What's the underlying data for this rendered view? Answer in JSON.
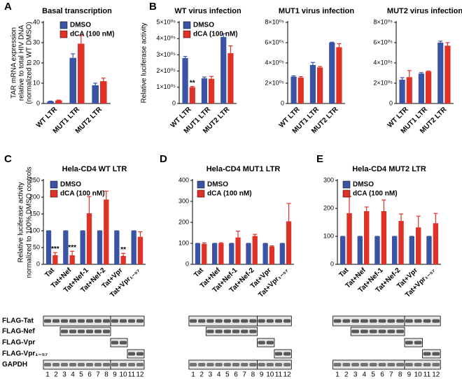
{
  "chart_data": [
    {
      "type": "bar",
      "panel": "A",
      "title": "Basal transcription",
      "ylabel": [
        "TAR mRNA expression",
        "relative to total HIV DNA",
        "(normalized to WT DMSO)"
      ],
      "categories": [
        "WT LTR",
        "MUT1 LTR",
        "MUT2 LTR"
      ],
      "series": [
        {
          "name": "DMSO",
          "color": "#3a53a4",
          "values": [
            1,
            22.5,
            9
          ],
          "errors": [
            0.2,
            2,
            1
          ]
        },
        {
          "name": "dCA (100 nM)",
          "color": "#e03127",
          "values": [
            1.5,
            29.5,
            11
          ],
          "errors": [
            0.2,
            4,
            1.5
          ]
        }
      ],
      "ylim": [
        0,
        40
      ],
      "yticks": [
        0,
        10,
        20,
        30,
        40
      ],
      "legend": true
    },
    {
      "type": "bar",
      "panel": "B",
      "title": "WT virus infection",
      "ylabel": [
        "Relative luciferase activity"
      ],
      "categories": [
        "WT LTR",
        "MUT1 LTR",
        "MUT2 LTR"
      ],
      "series": [
        {
          "name": "DMSO",
          "color": "#3a53a4",
          "values": [
            280000,
            155000,
            410000
          ],
          "errors": [
            10000,
            8000,
            20000
          ]
        },
        {
          "name": "dCA (100 nM)",
          "color": "#e03127",
          "values": [
            100000,
            152000,
            310000
          ],
          "errors": [
            5000,
            15000,
            45000
          ]
        }
      ],
      "annotations": [
        {
          "text": "**",
          "category": "WT LTR"
        }
      ],
      "ylim": [
        0,
        500000
      ],
      "yticks": [
        0,
        {
          "value": 100000,
          "label": "1×10⁰⁵"
        },
        {
          "value": 200000,
          "label": "2×10⁰⁵"
        },
        {
          "value": 300000,
          "label": "3×10⁰⁵"
        },
        {
          "value": 400000,
          "label": "4×10⁰⁵"
        },
        {
          "value": 500000,
          "label": "5×10⁰⁵"
        }
      ],
      "legend": true
    },
    {
      "type": "bar",
      "title": "MUT1 virus infection",
      "categories": [
        "WT LTR",
        "MUT1 LTR",
        "MUT2 LTR"
      ],
      "series": [
        {
          "color": "#3a53a4",
          "values": [
            265000,
            380000,
            600000
          ],
          "errors": [
            8000,
            25000,
            5000
          ]
        },
        {
          "color": "#e03127",
          "values": [
            255000,
            355000,
            555000
          ],
          "errors": [
            10000,
            10000,
            35000
          ]
        }
      ],
      "ylim": [
        0,
        800000
      ],
      "yticks": [
        0,
        {
          "value": 200000,
          "label": "2×10⁰⁵"
        },
        {
          "value": 400000,
          "label": "4×10⁰⁵"
        },
        {
          "value": 600000,
          "label": "6×10⁰⁵"
        },
        {
          "value": 800000,
          "label": "8×10⁰⁵"
        }
      ],
      "legend": false
    },
    {
      "type": "bar",
      "title": "MUT2 virus infection",
      "categories": [
        "WT LTR",
        "MUT1 LTR",
        "MUT2 LTR"
      ],
      "series": [
        {
          "color": "#3a53a4",
          "values": [
            235000,
            295000,
            600000
          ],
          "errors": [
            20000,
            10000,
            15000
          ]
        },
        {
          "color": "#e03127",
          "values": [
            260000,
            315000,
            570000
          ],
          "errors": [
            65000,
            5000,
            30000
          ]
        }
      ],
      "ylim": [
        0,
        800000
      ],
      "yticks": [
        0,
        {
          "value": 200000,
          "label": "2×10⁰⁵"
        },
        {
          "value": 400000,
          "label": "4×10⁰⁵"
        },
        {
          "value": 600000,
          "label": "6×10⁰⁵"
        },
        {
          "value": 800000,
          "label": "8×10⁰⁵"
        }
      ],
      "legend": false
    },
    {
      "type": "bar",
      "panel": "C",
      "title": "Hela-CD4 WT LTR",
      "ylabel": [
        "Relative luciferase activity",
        "normalized to 100% DMSO controls"
      ],
      "categories": [
        "Tat",
        "Tat+Nef",
        "Tat+Nef-1",
        "Tat+Nef-2",
        "Tat+Vpr",
        "Tat+Vpr₁₋₅₇"
      ],
      "series": [
        {
          "name": "DMSO",
          "color": "#3a53a4",
          "values": [
            100,
            100,
            100,
            100,
            100,
            100
          ],
          "errors": [
            0,
            0,
            0,
            0,
            0,
            0
          ]
        },
        {
          "name": "dCA (100 nM)",
          "color": "#e03127",
          "values": [
            27,
            27,
            152,
            193,
            25,
            82
          ],
          "errors": [
            8,
            12,
            50,
            25,
            8,
            15
          ]
        }
      ],
      "annotations": [
        {
          "text": "***",
          "category": "Tat"
        },
        {
          "text": "***",
          "category": "Tat+Nef"
        },
        {
          "text": "**",
          "category": "Tat+Vpr"
        }
      ],
      "ylim": [
        0,
        250
      ],
      "yticks": [
        0,
        50,
        100,
        150,
        200,
        250
      ],
      "legend": true
    },
    {
      "type": "bar",
      "panel": "D",
      "title": "Hela-CD4 MUT1 LTR",
      "categories": [
        "Tat",
        "Tat+Nef",
        "Tat+Nef-1",
        "Tat+Nef-2",
        "Tat+Vpr",
        "Tat+Vpr₁₋₅₇"
      ],
      "series": [
        {
          "name": "DMSO",
          "color": "#3a53a4",
          "values": [
            100,
            100,
            100,
            100,
            100,
            100
          ],
          "errors": [
            0,
            0,
            0,
            0,
            0,
            0
          ]
        },
        {
          "name": "dCA (100 nM)",
          "color": "#e03127",
          "values": [
            97,
            100,
            128,
            135,
            85,
            205
          ],
          "errors": [
            5,
            3,
            30,
            8,
            3,
            85
          ]
        }
      ],
      "ylim": [
        0,
        400
      ],
      "yticks": [
        0,
        100,
        200,
        300,
        400
      ],
      "legend": true
    },
    {
      "type": "bar",
      "panel": "E",
      "title": "Hela-CD4 MUT2 LTR",
      "categories": [
        "Tat",
        "Tat+Nef",
        "Tat+Nef-1",
        "Tat+Nef-2",
        "Tat+Vpr",
        "Tat+Vpr₁₋₅₇"
      ],
      "series": [
        {
          "name": "DMSO",
          "color": "#3a53a4",
          "values": [
            100,
            100,
            100,
            100,
            100,
            100
          ],
          "errors": [
            0,
            0,
            0,
            0,
            0,
            0
          ]
        },
        {
          "name": "dCA (100 nM)",
          "color": "#e03127",
          "values": [
            183,
            190,
            190,
            155,
            132,
            147
          ],
          "errors": [
            60,
            15,
            40,
            25,
            40,
            35
          ]
        }
      ],
      "ylim": [
        0,
        300
      ],
      "yticks": [
        0,
        100,
        200,
        300
      ],
      "legend": true
    }
  ],
  "blots": {
    "row_labels": [
      "FLAG-Tat",
      "FLAG-Nef",
      "FLAG-Vpr",
      "FLAG-Vpr₁₋₅₇",
      "GAPDH"
    ],
    "lanes": [
      1,
      2,
      3,
      4,
      5,
      6,
      7,
      8,
      9,
      10,
      11,
      12
    ]
  }
}
